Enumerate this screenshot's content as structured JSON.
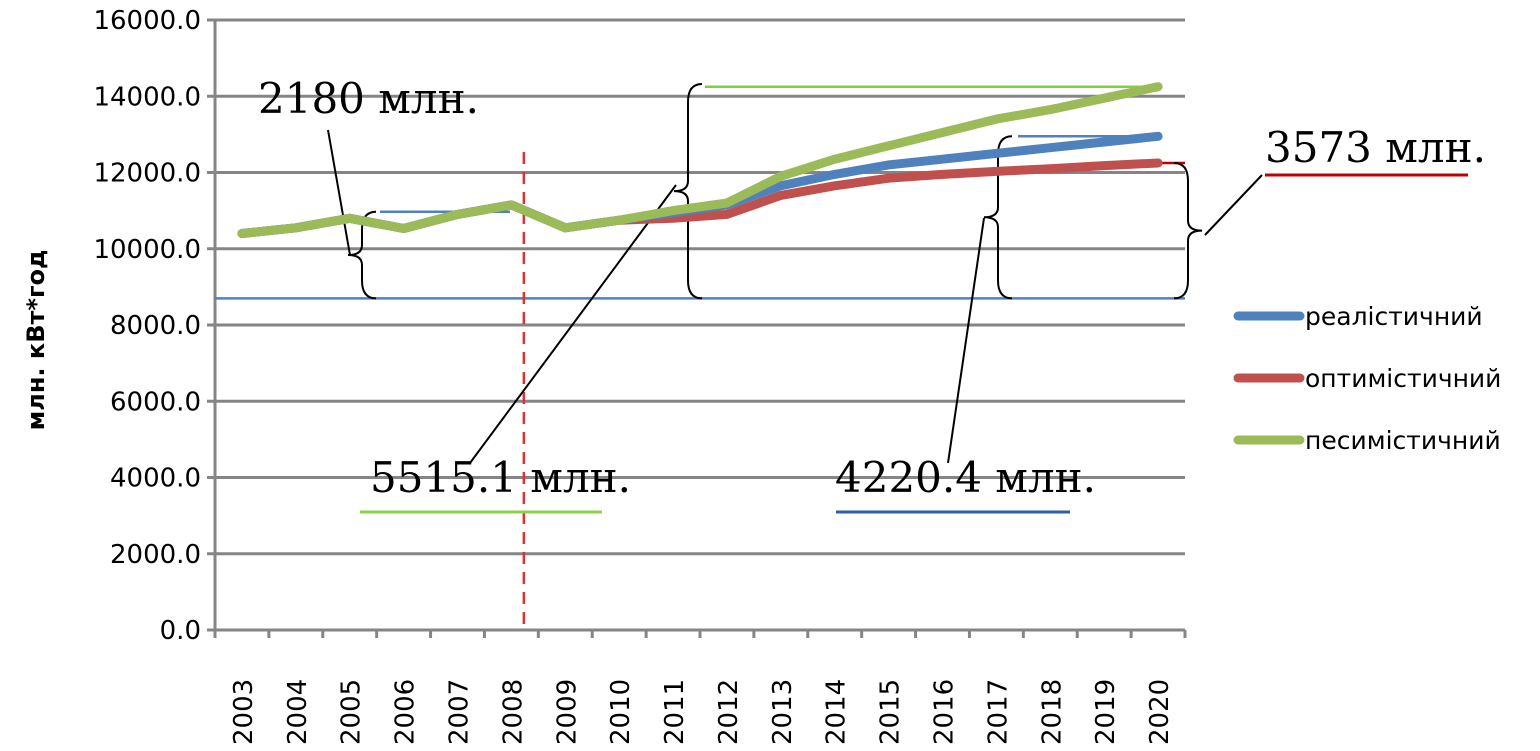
{
  "chart_data": {
    "type": "line",
    "ylabel": "млн. кВт*год",
    "xlabel": "",
    "ylim": [
      0,
      16000
    ],
    "yticks": [
      "0.0",
      "2000.0",
      "4000.0",
      "6000.0",
      "8000.0",
      "10000.0",
      "12000.0",
      "14000.0",
      "16000.0"
    ],
    "categories": [
      "2003",
      "2004",
      "2005",
      "2006",
      "2007",
      "2008",
      "2009",
      "2010",
      "2011",
      "2012",
      "2013",
      "2014",
      "2015",
      "2016",
      "2017",
      "2018",
      "2019",
      "2020"
    ],
    "series": [
      {
        "name": "реалістичний",
        "color": "#4f81bd",
        "values": [
          10400,
          10550,
          10800,
          10530,
          10900,
          11150,
          10550,
          10750,
          10950,
          11150,
          11650,
          11950,
          12200,
          12350,
          12500,
          12650,
          12800,
          12950
        ]
      },
      {
        "name": "оптимістичний",
        "color": "#c0504d",
        "values": [
          10400,
          10550,
          10800,
          10530,
          10900,
          11150,
          10550,
          10750,
          10800,
          10900,
          11400,
          11650,
          11850,
          11950,
          12030,
          12100,
          12180,
          12250
        ]
      },
      {
        "name": "песимістичний",
        "color": "#9bbb59",
        "values": [
          10400,
          10550,
          10800,
          10530,
          10900,
          11150,
          10550,
          10750,
          11000,
          11200,
          11900,
          12350,
          12700,
          13050,
          13400,
          13650,
          13950,
          14250
        ]
      }
    ],
    "baseline": {
      "value": 8700,
      "color": "#4f81bd"
    },
    "forecast_start_marker": {
      "category": "2008",
      "color": "#e03030"
    },
    "annotations": [
      {
        "text": "2180 млн.",
        "color": ""
      },
      {
        "text": "5515.1 млн.",
        "color": "#9bbb59"
      },
      {
        "text": "4220.4 млн.",
        "color": "#4f81bd"
      },
      {
        "text": "3573 млн.",
        "color": "#c00000"
      }
    ],
    "legend_position": "right",
    "grid": true
  }
}
